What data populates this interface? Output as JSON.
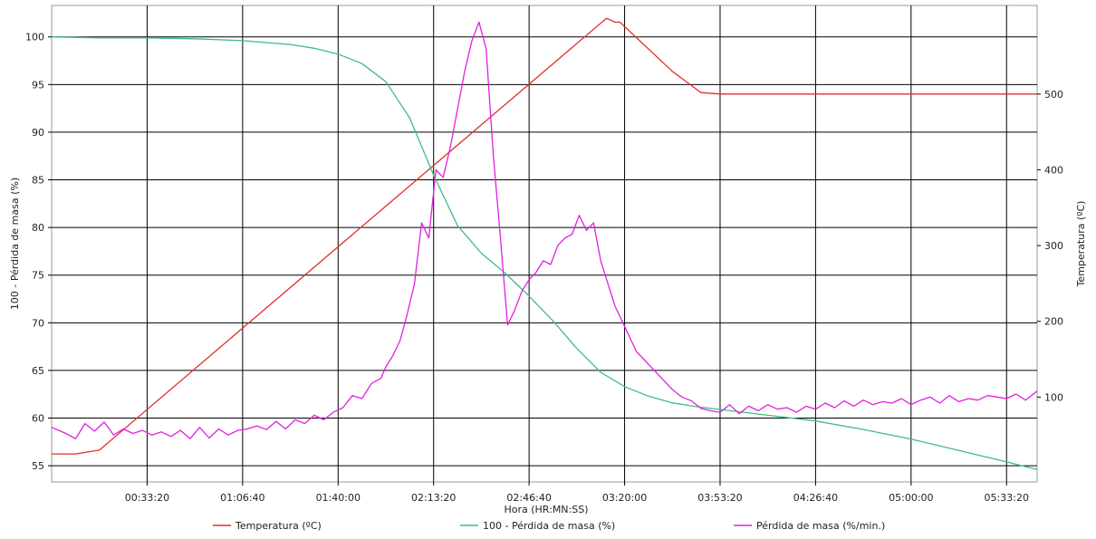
{
  "chart_data": {
    "type": "line",
    "xlabel": "Hora (HR:MN:SS)",
    "ylabel_left": "100 - Pérdida de masa (%)",
    "ylabel_right": "Temperatura (ºC)",
    "x_unit": "seconds",
    "xlim": [
      0,
      20640
    ],
    "x_ticks": [
      2000,
      4000,
      6000,
      8000,
      10000,
      12000,
      14000,
      16000,
      18000,
      20000
    ],
    "x_tick_labels": [
      "00:33:20",
      "01:06:40",
      "01:40:00",
      "02:13:20",
      "02:46:40",
      "03:20:00",
      "03:53:20",
      "04:26:40",
      "05:00:00",
      "05:33:20"
    ],
    "ylim_left": [
      53.3,
      103.3
    ],
    "y_ticks_left": [
      55,
      60,
      65,
      70,
      75,
      80,
      85,
      90,
      95,
      100
    ],
    "ylim_right": [
      -12,
      617
    ],
    "y_ticks_right": [
      100,
      200,
      300,
      400,
      500
    ],
    "grid": true,
    "legend_position": "bottom",
    "series": [
      {
        "name": "Temperatura (ºC)",
        "axis": "right",
        "color": "#e0302b",
        "x": [
          0,
          500,
          1000,
          11620,
          11800,
          11900,
          13000,
          13600,
          14000,
          15000,
          20640
        ],
        "y": [
          25,
          25,
          30,
          600,
          595,
          595,
          530,
          502,
          500,
          500,
          500
        ]
      },
      {
        "name": "100 - Pérdida de masa (%)",
        "axis": "left",
        "color": "#3fba8a",
        "x": [
          0,
          1000,
          2000,
          3000,
          4000,
          5000,
          5500,
          6000,
          6500,
          7000,
          7500,
          8000,
          8500,
          9000,
          9500,
          10000,
          10500,
          11000,
          11500,
          12000,
          12500,
          13000,
          13500,
          14000,
          15000,
          16000,
          17000,
          18000,
          19000,
          20000,
          20640
        ],
        "y": [
          100,
          99.9,
          99.9,
          99.8,
          99.6,
          99.2,
          98.8,
          98.2,
          97.2,
          95.3,
          91.5,
          85.5,
          80.2,
          77.3,
          75.2,
          72.8,
          70.2,
          67.3,
          64.8,
          63.3,
          62.3,
          61.6,
          61.2,
          60.9,
          60.3,
          59.7,
          58.8,
          57.8,
          56.6,
          55.4,
          54.6
        ]
      },
      {
        "name": "Pérdida de masa (%/min.)",
        "axis": "right",
        "color": "#e020e0",
        "x": [
          0,
          300,
          500,
          700,
          900,
          1100,
          1300,
          1500,
          1700,
          1900,
          2100,
          2300,
          2500,
          2700,
          2900,
          3100,
          3300,
          3500,
          3700,
          3900,
          4100,
          4300,
          4500,
          4700,
          4900,
          5100,
          5300,
          5500,
          5700,
          5900,
          6100,
          6300,
          6500,
          6700,
          6900,
          7000,
          7150,
          7300,
          7450,
          7600,
          7750,
          7900,
          8050,
          8200,
          8350,
          8500,
          8650,
          8800,
          8950,
          9100,
          9250,
          9400,
          9550,
          9700,
          9850,
          10000,
          10150,
          10300,
          10450,
          10600,
          10750,
          10900,
          11050,
          11200,
          11350,
          11500,
          11650,
          11800,
          11950,
          12100,
          12250,
          12400,
          12550,
          12700,
          12850,
          13000,
          13200,
          13400,
          13600,
          13800,
          14000,
          14200,
          14400,
          14600,
          14800,
          15000,
          15200,
          15400,
          15600,
          15800,
          16000,
          16200,
          16400,
          16600,
          16800,
          17000,
          17200,
          17400,
          17600,
          17800,
          18000,
          18200,
          18400,
          18600,
          18800,
          19000,
          19200,
          19400,
          19600,
          19800,
          20000,
          20200,
          20400,
          20640
        ],
        "y": [
          60,
          52,
          45,
          65,
          55,
          67,
          50,
          58,
          52,
          56,
          50,
          54,
          48,
          56,
          45,
          60,
          46,
          58,
          50,
          56,
          58,
          62,
          57,
          68,
          58,
          70,
          65,
          76,
          70,
          80,
          86,
          102,
          98,
          118,
          125,
          140,
          155,
          175,
          210,
          250,
          330,
          310,
          400,
          390,
          430,
          480,
          530,
          570,
          595,
          560,
          420,
          310,
          195,
          215,
          240,
          255,
          265,
          280,
          275,
          300,
          310,
          315,
          340,
          320,
          330,
          280,
          250,
          220,
          200,
          180,
          160,
          150,
          140,
          130,
          120,
          110,
          100,
          95,
          85,
          82,
          80,
          90,
          78,
          88,
          82,
          90,
          84,
          86,
          80,
          88,
          84,
          92,
          86,
          95,
          88,
          96,
          90,
          94,
          92,
          98,
          90,
          96,
          100,
          92,
          102,
          94,
          98,
          96,
          102,
          100,
          98,
          104,
          96,
          108
        ]
      }
    ]
  }
}
